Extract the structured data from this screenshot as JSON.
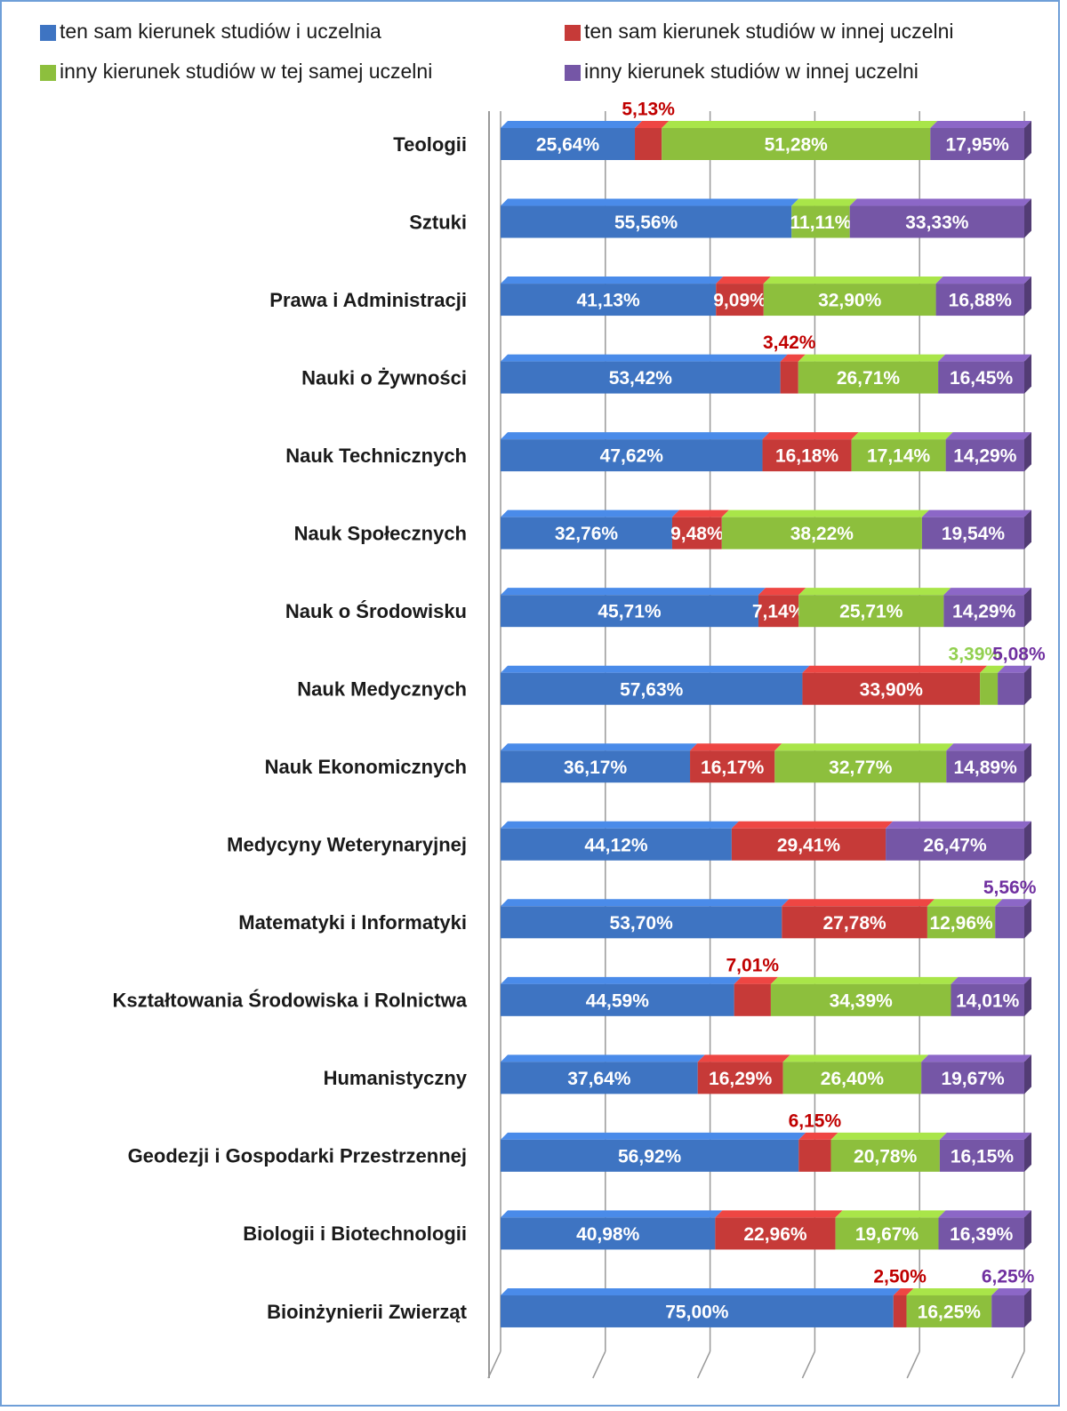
{
  "chart_data": {
    "type": "bar",
    "orientation": "horizontal",
    "stacked": "percent",
    "categories": [
      "Teologii",
      "Sztuki",
      "Prawa i Administracji",
      "Nauki o Żywności",
      "Nauk Technicznych",
      "Nauk Społecznych",
      "Nauk o Środowisku",
      "Nauk Medycznych",
      "Nauk Ekonomicznych",
      "Medycyny Weterynaryjnej",
      "Matematyki i Informatyki",
      "Kształtowania Środowiska i Rolnictwa",
      "Humanistyczny",
      "Geodezji i Gospodarki Przestrzennej",
      "Biologii i Biotechnologii",
      "Bioinżynierii Zwierząt"
    ],
    "series": [
      {
        "name": "ten sam kierunek studiów i uczelnia",
        "color": "#3e74c2",
        "label_color": "#ffffff",
        "values": [
          25.64,
          55.56,
          41.13,
          53.42,
          47.62,
          32.76,
          45.71,
          57.63,
          36.17,
          44.12,
          53.7,
          44.59,
          37.64,
          56.92,
          40.98,
          75.0
        ],
        "value_labels": [
          "25,64%",
          "55,56%",
          "41,13%",
          "53,42%",
          "47,62%",
          "32,76%",
          "45,71%",
          "57,63%",
          "36,17%",
          "44,12%",
          "53,70%",
          "44,59%",
          "37,64%",
          "56,92%",
          "40,98%",
          "75,00%"
        ]
      },
      {
        "name": "ten sam kierunek studiów w innej uczelni",
        "color": "#c63a38",
        "label_color": "#c00000",
        "values": [
          5.13,
          null,
          9.09,
          3.42,
          16.18,
          9.48,
          7.14,
          33.9,
          16.17,
          29.41,
          27.78,
          7.01,
          16.29,
          6.15,
          22.96,
          2.5
        ],
        "value_labels": [
          "5,13%",
          null,
          "9,09%",
          "3,42%",
          "16,18%",
          "9,48%",
          "7,14%",
          "33,90%",
          "16,17%",
          "29,41%",
          "27,78%",
          "7,01%",
          "16,29%",
          "6,15%",
          "22,96%",
          "2,50%"
        ]
      },
      {
        "name": "inny kierunek studiów w tej samej uczelni",
        "color": "#8dbf3d",
        "label_color": "#92d050",
        "values": [
          51.28,
          11.11,
          32.9,
          26.71,
          17.14,
          38.22,
          25.71,
          3.39,
          32.77,
          null,
          12.96,
          34.39,
          26.4,
          20.78,
          19.67,
          16.25
        ],
        "value_labels": [
          "51,28%",
          "11,11%",
          "32,90%",
          "26,71%",
          "17,14%",
          "38,22%",
          "25,71%",
          "3,39%",
          "32,77%",
          null,
          "12,96%",
          "34,39%",
          "26,40%",
          "20,78%",
          "19,67%",
          "16,25%"
        ]
      },
      {
        "name": "inny kierunek studiów w innej uczelni",
        "color": "#7556a6",
        "label_color": "#7030a0",
        "values": [
          17.95,
          33.33,
          16.88,
          16.45,
          14.29,
          19.54,
          14.29,
          5.08,
          14.89,
          26.47,
          5.56,
          14.01,
          19.67,
          16.15,
          16.39,
          6.25
        ],
        "value_labels": [
          "17,95%",
          "33,33%",
          "16,88%",
          "16,45%",
          "14,29%",
          "19,54%",
          "14,29%",
          "5,08%",
          "14,89%",
          "26,47%",
          "5,56%",
          "14,01%",
          "19,67%",
          "16,15%",
          "16,39%",
          "6,25%"
        ]
      }
    ],
    "xlim": [
      0,
      100
    ],
    "xticks": [
      0,
      20,
      40,
      60,
      80,
      100
    ],
    "grid": true,
    "legend": "top"
  }
}
